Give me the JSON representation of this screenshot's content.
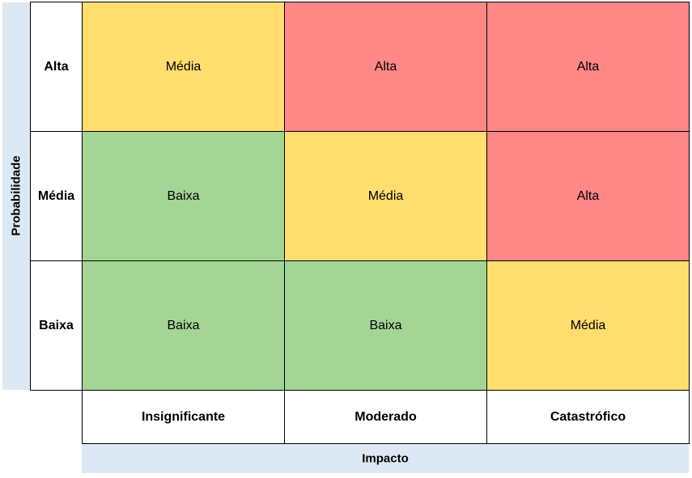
{
  "axis": {
    "y_title": "Probabilidade",
    "x_title": "Impacto"
  },
  "rows": [
    "Alta",
    "Média",
    "Baixa"
  ],
  "columns": [
    "Insignificante",
    "Moderado",
    "Catastrófico"
  ],
  "cells": [
    [
      "Média",
      "Alta",
      "Alta"
    ],
    [
      "Baixa",
      "Média",
      "Alta"
    ],
    [
      "Baixa",
      "Baixa",
      "Média"
    ]
  ],
  "colors": {
    "Alta": "#ff8886",
    "Média": "#ffdd6e",
    "Baixa": "#a4d595"
  }
}
